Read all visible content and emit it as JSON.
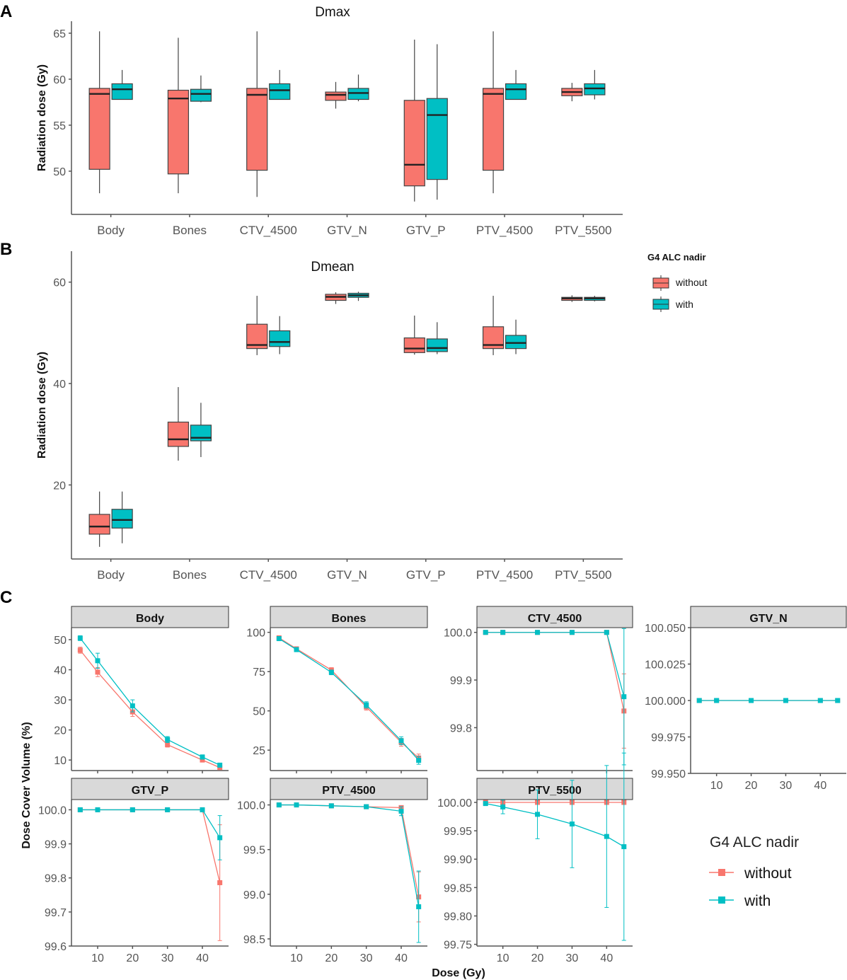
{
  "panel_letters": {
    "a": "A",
    "b": "B",
    "c": "C"
  },
  "colors": {
    "without": "#F8766D",
    "with": "#00BFC4",
    "strip_bg": "#D9D9D9",
    "axis": "#555555"
  },
  "legend_small": {
    "title": "G4 ALC nadir",
    "without": "without",
    "with": "with"
  },
  "legend_large": {
    "title": "G4 ALC nadir",
    "without": "without",
    "with": "with"
  },
  "c_xlabel": "Dose (Gy)",
  "c_ylabel": "Dose Cover Volume (%)",
  "chart_data": [
    {
      "type": "box",
      "id": "dmax",
      "title": "Dmax",
      "ylabel": "Radiation dose (Gy)",
      "ylim": [
        45.3,
        66.3
      ],
      "yticks": [
        50,
        55,
        60,
        65
      ],
      "categories": [
        "Body",
        "Bones",
        "CTV_4500",
        "GTV_N",
        "GTV_P",
        "PTV_4500",
        "PTV_5500"
      ],
      "series": [
        {
          "name": "without",
          "boxes": [
            {
              "min": 47.6,
              "q1": 50.2,
              "median": 58.4,
              "q3": 59.0,
              "max": 65.2
            },
            {
              "min": 47.6,
              "q1": 49.7,
              "median": 57.9,
              "q3": 58.8,
              "max": 64.5
            },
            {
              "min": 47.2,
              "q1": 50.1,
              "median": 58.3,
              "q3": 59.0,
              "max": 65.2
            },
            {
              "min": 56.8,
              "q1": 57.7,
              "median": 58.3,
              "q3": 58.6,
              "max": 59.7
            },
            {
              "min": 46.7,
              "q1": 48.4,
              "median": 50.7,
              "q3": 57.7,
              "max": 64.3
            },
            {
              "min": 47.6,
              "q1": 50.1,
              "median": 58.4,
              "q3": 59.0,
              "max": 65.2
            },
            {
              "min": 57.6,
              "q1": 58.2,
              "median": 58.6,
              "q3": 59.0,
              "max": 59.6
            }
          ]
        },
        {
          "name": "with",
          "boxes": [
            {
              "min": 57.8,
              "q1": 57.8,
              "median": 58.9,
              "q3": 59.5,
              "max": 61.0
            },
            {
              "min": 57.5,
              "q1": 57.6,
              "median": 58.4,
              "q3": 58.9,
              "max": 60.4
            },
            {
              "min": 57.8,
              "q1": 57.8,
              "median": 58.8,
              "q3": 59.5,
              "max": 61.0
            },
            {
              "min": 57.6,
              "q1": 57.8,
              "median": 58.5,
              "q3": 59.0,
              "max": 60.5
            },
            {
              "min": 46.9,
              "q1": 49.1,
              "median": 56.1,
              "q3": 57.9,
              "max": 63.8
            },
            {
              "min": 57.8,
              "q1": 57.8,
              "median": 58.9,
              "q3": 59.5,
              "max": 61.0
            },
            {
              "min": 57.8,
              "q1": 58.3,
              "median": 59.0,
              "q3": 59.5,
              "max": 61.0
            }
          ]
        }
      ]
    },
    {
      "type": "box",
      "id": "dmean",
      "title": "Dmean",
      "ylabel": "Radiation dose (Gy)",
      "ylim": [
        5.4,
        66.1
      ],
      "yticks": [
        20,
        40,
        60
      ],
      "categories": [
        "Body",
        "Bones",
        "CTV_4500",
        "GTV_N",
        "GTV_P",
        "PTV_4500",
        "PTV_5500"
      ],
      "series": [
        {
          "name": "without",
          "boxes": [
            {
              "min": 7.8,
              "q1": 10.3,
              "median": 11.8,
              "q3": 14.2,
              "max": 18.7
            },
            {
              "min": 24.8,
              "q1": 27.6,
              "median": 29.0,
              "q3": 32.4,
              "max": 39.3
            },
            {
              "min": 45.6,
              "q1": 46.9,
              "median": 47.6,
              "q3": 51.7,
              "max": 57.3
            },
            {
              "min": 55.7,
              "q1": 56.4,
              "median": 57.1,
              "q3": 57.6,
              "max": 58.0
            },
            {
              "min": 45.7,
              "q1": 46.1,
              "median": 46.9,
              "q3": 49.0,
              "max": 53.4
            },
            {
              "min": 45.6,
              "q1": 46.9,
              "median": 47.6,
              "q3": 51.2,
              "max": 57.3
            },
            {
              "min": 56.1,
              "q1": 56.4,
              "median": 56.8,
              "q3": 57.0,
              "max": 57.4
            }
          ]
        },
        {
          "name": "with",
          "boxes": [
            {
              "min": 8.5,
              "q1": 11.5,
              "median": 13.1,
              "q3": 15.2,
              "max": 18.7
            },
            {
              "min": 25.5,
              "q1": 28.7,
              "median": 29.3,
              "q3": 31.8,
              "max": 36.2
            },
            {
              "min": 45.8,
              "q1": 47.3,
              "median": 48.2,
              "q3": 50.4,
              "max": 53.3
            },
            {
              "min": 56.3,
              "q1": 57.0,
              "median": 57.4,
              "q3": 57.8,
              "max": 58.1
            },
            {
              "min": 45.8,
              "q1": 46.3,
              "median": 47.0,
              "q3": 48.8,
              "max": 52.1
            },
            {
              "min": 45.8,
              "q1": 46.9,
              "median": 48.0,
              "q3": 49.5,
              "max": 52.6
            },
            {
              "min": 56.2,
              "q1": 56.4,
              "median": 56.8,
              "q3": 57.0,
              "max": 57.3
            }
          ]
        }
      ]
    },
    {
      "type": "line",
      "id": "c_body",
      "title": "Body",
      "ylim": [
        6.5,
        54
      ],
      "yticks": [
        10,
        20,
        30,
        40,
        50
      ],
      "ytick_labels": [
        "10",
        "20",
        "30",
        "40",
        "50"
      ],
      "xlim": [
        2.5,
        47.5
      ],
      "xticks": [
        10,
        20,
        30,
        40
      ],
      "xtick_labels": [
        "10",
        "20",
        "30",
        "40"
      ],
      "show_xticks": false,
      "x": [
        5,
        10,
        20,
        30,
        40,
        45
      ],
      "series": [
        {
          "name": "without",
          "y": [
            46.5,
            39.2,
            26.0,
            15.1,
            10.0,
            7.5
          ],
          "err": [
            1.0,
            1.5,
            1.5,
            0.8,
            0.6,
            0.5
          ]
        },
        {
          "name": "with",
          "y": [
            50.5,
            43.0,
            28.0,
            16.8,
            11.0,
            8.3
          ],
          "err": [
            0.8,
            2.5,
            2.0,
            1.0,
            0.7,
            0.6
          ]
        }
      ]
    },
    {
      "type": "line",
      "id": "c_bones",
      "title": "Bones",
      "ylim": [
        12,
        103
      ],
      "yticks": [
        25,
        50,
        75,
        100
      ],
      "ytick_labels": [
        "25",
        "50",
        "75",
        "100"
      ],
      "xlim": [
        2.5,
        47.5
      ],
      "xticks": [
        10,
        20,
        30,
        40
      ],
      "xtick_labels": [
        "10",
        "20",
        "30",
        "40"
      ],
      "show_xticks": false,
      "x": [
        5,
        10,
        20,
        30,
        40,
        45
      ],
      "series": [
        {
          "name": "without",
          "y": [
            96.5,
            89.5,
            76.0,
            52.5,
            30.0,
            20.0
          ],
          "err": [
            0.5,
            0.8,
            1.5,
            2.0,
            2.5,
            2.5
          ]
        },
        {
          "name": "with",
          "y": [
            96.0,
            89.0,
            74.5,
            53.8,
            31.0,
            18.5
          ],
          "err": [
            0.5,
            0.8,
            1.5,
            2.0,
            2.5,
            2.5
          ]
        }
      ]
    },
    {
      "type": "line",
      "id": "c_ctv",
      "title": "CTV_4500",
      "ylim": [
        99.71,
        100.01
      ],
      "yticks": [
        99.8,
        99.9,
        100.0
      ],
      "ytick_labels": [
        "99.8",
        "99.9",
        "100.0"
      ],
      "xlim": [
        2.5,
        47.5
      ],
      "xticks": [
        10,
        20,
        30,
        40
      ],
      "xtick_labels": [
        "10",
        "20",
        "30",
        "40"
      ],
      "show_xticks": false,
      "x": [
        5,
        10,
        20,
        30,
        40,
        45
      ],
      "series": [
        {
          "name": "without",
          "y": [
            100.0,
            100.0,
            100.0,
            100.0,
            100.0,
            99.835
          ],
          "err": [
            0,
            0,
            0,
            0,
            0,
            0.078
          ]
        },
        {
          "name": "with",
          "y": [
            100.0,
            100.0,
            100.0,
            100.0,
            100.0,
            99.865
          ],
          "err": [
            0,
            0,
            0,
            0,
            0,
            0.143
          ]
        }
      ]
    },
    {
      "type": "line",
      "id": "c_gtvn",
      "title": "GTV_N",
      "ylim": [
        99.95,
        100.05
      ],
      "yticks": [
        99.95,
        99.975,
        100.0,
        100.025,
        100.05
      ],
      "ytick_labels": [
        "99.950",
        "99.975",
        "100.000",
        "100.025",
        "100.050"
      ],
      "xlim": [
        2.5,
        47.5
      ],
      "xticks": [
        10,
        20,
        30,
        40
      ],
      "xtick_labels": [
        "10",
        "20",
        "30",
        "40"
      ],
      "show_xticks": true,
      "x": [
        5,
        10,
        20,
        30,
        40,
        45
      ],
      "series": [
        {
          "name": "without",
          "y": [
            100.0,
            100.0,
            100.0,
            100.0,
            100.0,
            100.0
          ],
          "err": [
            0,
            0,
            0,
            0,
            0,
            0
          ]
        },
        {
          "name": "with",
          "y": [
            100.0,
            100.0,
            100.0,
            100.0,
            100.0,
            100.0
          ],
          "err": [
            0,
            0,
            0,
            0,
            0,
            0
          ]
        }
      ]
    },
    {
      "type": "line",
      "id": "c_gtvp",
      "title": "GTV_P",
      "ylim": [
        99.6,
        100.03
      ],
      "yticks": [
        99.6,
        99.7,
        99.8,
        99.9,
        100.0
      ],
      "ytick_labels": [
        "99.6",
        "99.7",
        "99.8",
        "99.9",
        "100.0"
      ],
      "xlim": [
        2.5,
        47.5
      ],
      "xticks": [
        10,
        20,
        30,
        40
      ],
      "xtick_labels": [
        "10",
        "20",
        "30",
        "40"
      ],
      "show_xticks": true,
      "x": [
        5,
        10,
        20,
        30,
        40,
        45
      ],
      "series": [
        {
          "name": "without",
          "y": [
            100.0,
            100.0,
            100.0,
            100.0,
            100.0,
            99.786
          ],
          "err": [
            0,
            0,
            0,
            0,
            0,
            0.17
          ]
        },
        {
          "name": "with",
          "y": [
            100.0,
            100.0,
            100.0,
            100.0,
            100.0,
            99.918
          ],
          "err": [
            0,
            0,
            0,
            0,
            0,
            0.065
          ]
        }
      ]
    },
    {
      "type": "line",
      "id": "c_ptv4500",
      "title": "PTV_4500",
      "ylim": [
        98.42,
        100.06
      ],
      "yticks": [
        98.5,
        99.0,
        99.5,
        100.0
      ],
      "ytick_labels": [
        "98.5",
        "99.0",
        "99.5",
        "100.0"
      ],
      "xlim": [
        2.5,
        47.5
      ],
      "xticks": [
        10,
        20,
        30,
        40
      ],
      "xtick_labels": [
        "10",
        "20",
        "30",
        "40"
      ],
      "show_xticks": true,
      "x": [
        5,
        10,
        20,
        30,
        40,
        45
      ],
      "series": [
        {
          "name": "without",
          "y": [
            100.0,
            100.0,
            99.99,
            99.98,
            99.97,
            98.97
          ],
          "err": [
            0,
            0,
            0,
            0.01,
            0.02,
            0.28
          ]
        },
        {
          "name": "with",
          "y": [
            100.0,
            100.0,
            99.99,
            99.98,
            99.93,
            98.86
          ],
          "err": [
            0,
            0,
            0,
            0.01,
            0.05,
            0.4
          ]
        }
      ]
    },
    {
      "type": "line",
      "id": "c_ptv5500",
      "title": "PTV_5500",
      "ylim": [
        99.747,
        100.005
      ],
      "yticks": [
        99.75,
        99.8,
        99.85,
        99.9,
        99.95,
        100.0
      ],
      "ytick_labels": [
        "99.75",
        "99.80",
        "99.85",
        "99.90",
        "99.95",
        "100.00"
      ],
      "xlim": [
        2.5,
        47.5
      ],
      "xticks": [
        10,
        20,
        30,
        40
      ],
      "xtick_labels": [
        "10",
        "20",
        "30",
        "40"
      ],
      "show_xticks": true,
      "x": [
        5,
        10,
        20,
        30,
        40,
        45
      ],
      "series": [
        {
          "name": "without",
          "y": [
            100.0,
            100.0,
            100.0,
            100.0,
            100.0,
            100.0
          ],
          "err": [
            0,
            0,
            0,
            0,
            0,
            0
          ]
        },
        {
          "name": "with",
          "y": [
            99.998,
            99.992,
            99.979,
            99.962,
            99.94,
            99.922
          ],
          "err": [
            0.002,
            0.012,
            0.043,
            0.077,
            0.125,
            0.165
          ]
        }
      ]
    }
  ]
}
